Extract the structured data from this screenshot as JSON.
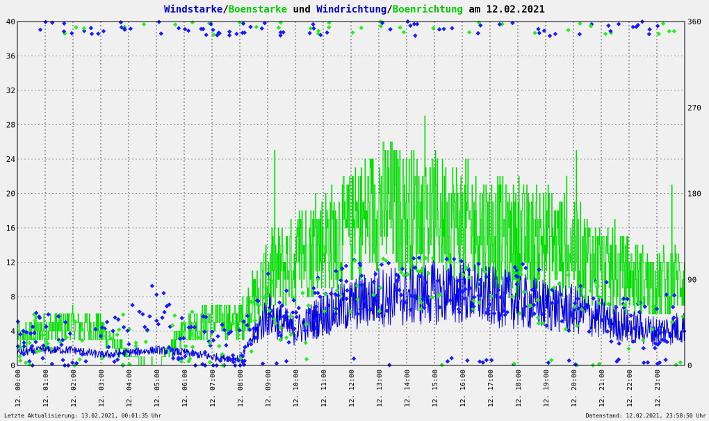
{
  "chart_data": {
    "type": "line",
    "title_parts": [
      {
        "text": "Windstarke",
        "color": "#0000cc"
      },
      {
        "text": "/",
        "color": "#000000"
      },
      {
        "text": "Boenstarke",
        "color": "#00cc00"
      },
      {
        "text": " und ",
        "color": "#000000"
      },
      {
        "text": "Windrichtung",
        "color": "#0000cc"
      },
      {
        "text": "/",
        "color": "#000000"
      },
      {
        "text": "Boenrichtung",
        "color": "#00cc00"
      },
      {
        "text": " am 12.02.2021",
        "color": "#000000"
      }
    ],
    "left_axis": {
      "ylim": [
        0,
        40
      ],
      "ticks": [
        0,
        4,
        8,
        12,
        16,
        20,
        24,
        28,
        32,
        36,
        40
      ]
    },
    "right_axis": {
      "ylim": [
        0,
        360
      ],
      "ticks": [
        0,
        90,
        180,
        270,
        360
      ]
    },
    "x_axis": {
      "xlim": [
        0,
        24
      ],
      "ticks": [
        "12. 00:00",
        "12. 01:00",
        "12. 02:00",
        "12. 03:00",
        "12. 04:00",
        "12. 05:00",
        "12. 06:00",
        "12. 07:00",
        "12. 08:00",
        "12. 09:00",
        "12. 10:00",
        "12. 11:00",
        "12. 12:00",
        "12. 13:00",
        "12. 14:00",
        "12. 15:00",
        "12. 16:00",
        "12. 17:00",
        "12. 18:00",
        "12. 19:00",
        "12. 20:00",
        "12. 21:00",
        "12. 22:00",
        "12. 23:00"
      ]
    },
    "grid": true,
    "colors": {
      "wind": "#0000dd",
      "gust": "#00dd00",
      "dir": "#1a1aff",
      "gustdir": "#22ee22"
    },
    "wind_hourly": [
      1.5,
      1.8,
      1.8,
      1.2,
      1.5,
      1.8,
      1.5,
      1.0,
      0.8,
      6.0,
      4.0,
      6.0,
      7.0,
      8.0,
      8.0,
      8.5,
      8.5,
      8.0,
      7.5,
      7.0,
      6.5,
      5.5,
      4.5,
      4.0,
      4.5
    ],
    "gust_hourly": [
      3.0,
      4.0,
      4.5,
      4.0,
      1.0,
      0.0,
      4.0,
      5.0,
      5.0,
      10.0,
      12.0,
      14.0,
      15.0,
      18.0,
      17.0,
      17.0,
      16.0,
      15.0,
      14.0,
      14.0,
      13.0,
      11.0,
      10.0,
      9.0,
      10.0
    ],
    "direction_hourly_deg": [
      20,
      30,
      20,
      15,
      30,
      60,
      30,
      20,
      15,
      70,
      40,
      70,
      80,
      85,
      85,
      90,
      85,
      80,
      80,
      70,
      65,
      60,
      45,
      45,
      50
    ]
  },
  "footer": {
    "left": "Letzte Aktualisierung: 13.02.2021, 00:01:35 Uhr",
    "right": "Datenstand: 12.02.2021, 23:58:50 Uhr"
  }
}
